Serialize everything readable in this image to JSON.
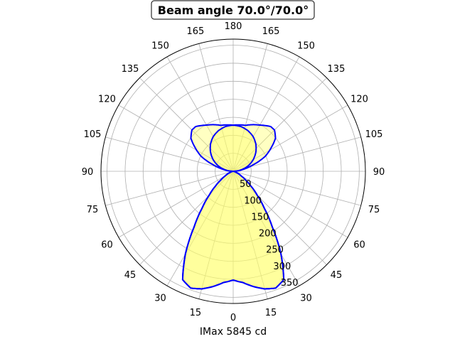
{
  "chart_data": {
    "type": "polar",
    "title": "Beam angle 70.0°/70.0°",
    "xlabel": "IMax 5845 cd",
    "angle_unit": "degrees",
    "angle_zero": "bottom",
    "angle_ticks": [
      0,
      15,
      30,
      45,
      60,
      75,
      90,
      105,
      120,
      135,
      150,
      165,
      180
    ],
    "radial_ticks": [
      50,
      100,
      150,
      200,
      250,
      300,
      350
    ],
    "rlim": [
      0,
      367
    ],
    "grid": true,
    "symmetric": true,
    "line_color": "#0000ff",
    "fill_color": "#ffff66",
    "series": [
      {
        "gamma": [
          0,
          5,
          10,
          15,
          20,
          25,
          30,
          35,
          40,
          45,
          50,
          55,
          60,
          70,
          80,
          90,
          100,
          110,
          120,
          130,
          140,
          150,
          160,
          170,
          180
        ],
        "values": [
          302,
          310,
          325,
          338,
          345,
          332,
          265,
          190,
          135,
          95,
          65,
          42,
          25,
          8,
          2,
          0,
          22,
          44,
          64,
          82,
          98,
          111,
          120,
          126,
          128
        ]
      },
      {
        "gamma": [
          0,
          5,
          10,
          15,
          20,
          25,
          30,
          35,
          40,
          45,
          50,
          55,
          60,
          70,
          80,
          90,
          100,
          108,
          115,
          122,
          128,
          135,
          140,
          150,
          165,
          180
        ],
        "values": [
          302,
          310,
          325,
          338,
          345,
          332,
          265,
          190,
          135,
          95,
          65,
          42,
          25,
          8,
          2,
          0,
          25,
          58,
          98,
          125,
          149,
          162,
          162,
          148,
          132,
          128
        ]
      }
    ]
  }
}
